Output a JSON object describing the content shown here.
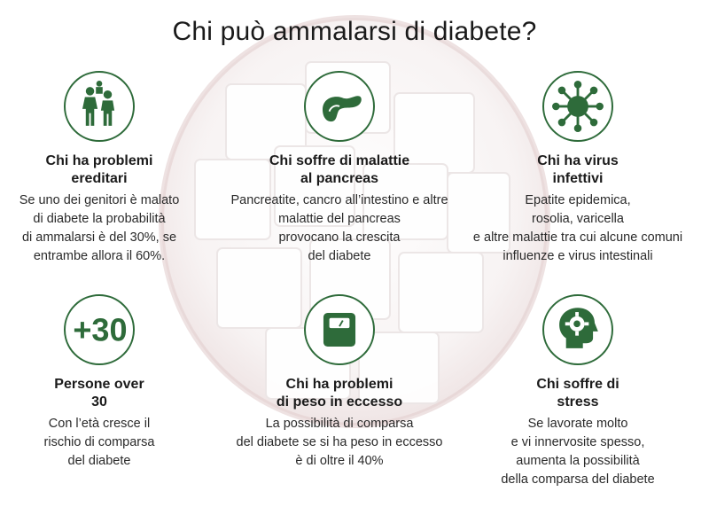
{
  "title": "Chi può ammalarsi di diabete?",
  "colors": {
    "accent": "#2e6b3a",
    "text": "#1b1b1b"
  },
  "cards": [
    {
      "icon": "family-icon",
      "heading": [
        "Chi ha problemi",
        "ereditari"
      ],
      "text": [
        "Se uno dei genitori è malato",
        "di diabete la probabilità",
        "di ammalarsi è del 30%, se",
        "entrambe allora il 60%."
      ]
    },
    {
      "icon": "pancreas-icon",
      "heading": [
        "Chi soffre di malattie",
        "al pancreas"
      ],
      "text": [
        "Pancreatite, cancro all’intestino e altre",
        "malattie del pancreas",
        "provocano la crescita",
        "del diabete"
      ]
    },
    {
      "icon": "virus-icon",
      "heading": [
        "Chi ha virus",
        "infettivi"
      ],
      "text": [
        "Epatite epidemica,",
        "rosolia, varicella",
        "e altre malattie tra cui alcune comuni",
        "influenze e virus intestinali"
      ]
    },
    {
      "icon": "plus-30-icon",
      "icon_text": "+30",
      "heading": [
        "Persone over",
        "30"
      ],
      "text": [
        "Con l’età cresce il",
        "rischio di comparsa",
        "del diabete"
      ]
    },
    {
      "icon": "scale-icon",
      "heading": [
        "Chi ha problemi",
        "di peso in eccesso"
      ],
      "text": [
        "La possibilità di comparsa",
        "del diabete se si ha peso in eccesso",
        "è di oltre il 40%"
      ]
    },
    {
      "icon": "head-gear-icon",
      "heading": [
        "Chi soffre di",
        "stress"
      ],
      "text": [
        "Se lavorate molto",
        "e vi innervosite spesso,",
        "aumenta la possibilità",
        "della comparsa del diabete"
      ]
    }
  ]
}
